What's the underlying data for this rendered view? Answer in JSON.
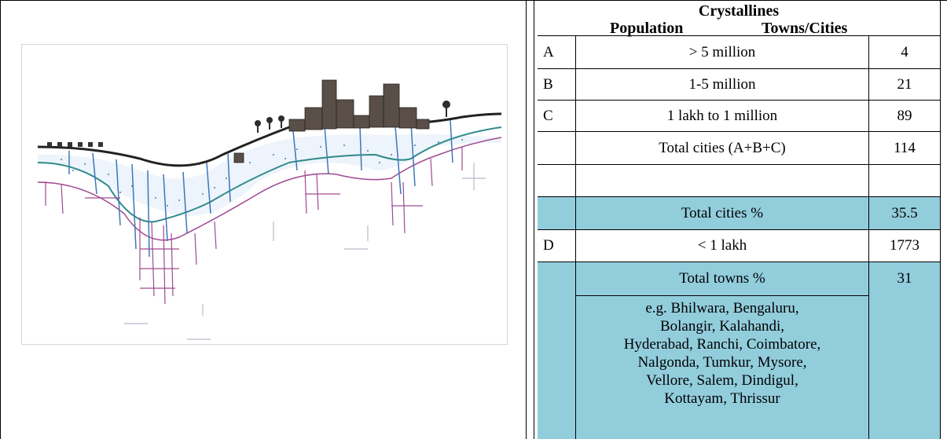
{
  "header": {
    "title": "Crystallines",
    "col_population": "Population",
    "col_towns": "Towns/Cities"
  },
  "rows": [
    {
      "code": "A",
      "population": "> 5 million",
      "count": "4"
    },
    {
      "code": "B",
      "population": "1-5 million",
      "count": "21"
    },
    {
      "code": "C",
      "population": "1 lakh to 1 million",
      "count": "89"
    },
    {
      "code": "",
      "population": "Total cities (A+B+C)",
      "count": "114"
    },
    {
      "code": "",
      "population": "Total cities %",
      "count": "35.5"
    },
    {
      "code": "D",
      "population": "< 1 lakh",
      "count": "1773"
    },
    {
      "code": "",
      "population": "Total towns %",
      "count": "31"
    }
  ],
  "examples": [
    "e.g. Bhilwara, Bengaluru,",
    "Bolangir, Kalahandi,",
    "Hyderabad, Ranchi, Coimbatore,",
    "Nalgonda, Tumkur, Mysore,",
    "Vellore, Salem, Dindigul,",
    "Kottayam, Thrissur"
  ],
  "colors": {
    "highlight": "#92cddc",
    "groundwater_blue": "#3b78b8",
    "fracture_magenta": "#a04a90",
    "dots_blue": "#4d79b0"
  }
}
